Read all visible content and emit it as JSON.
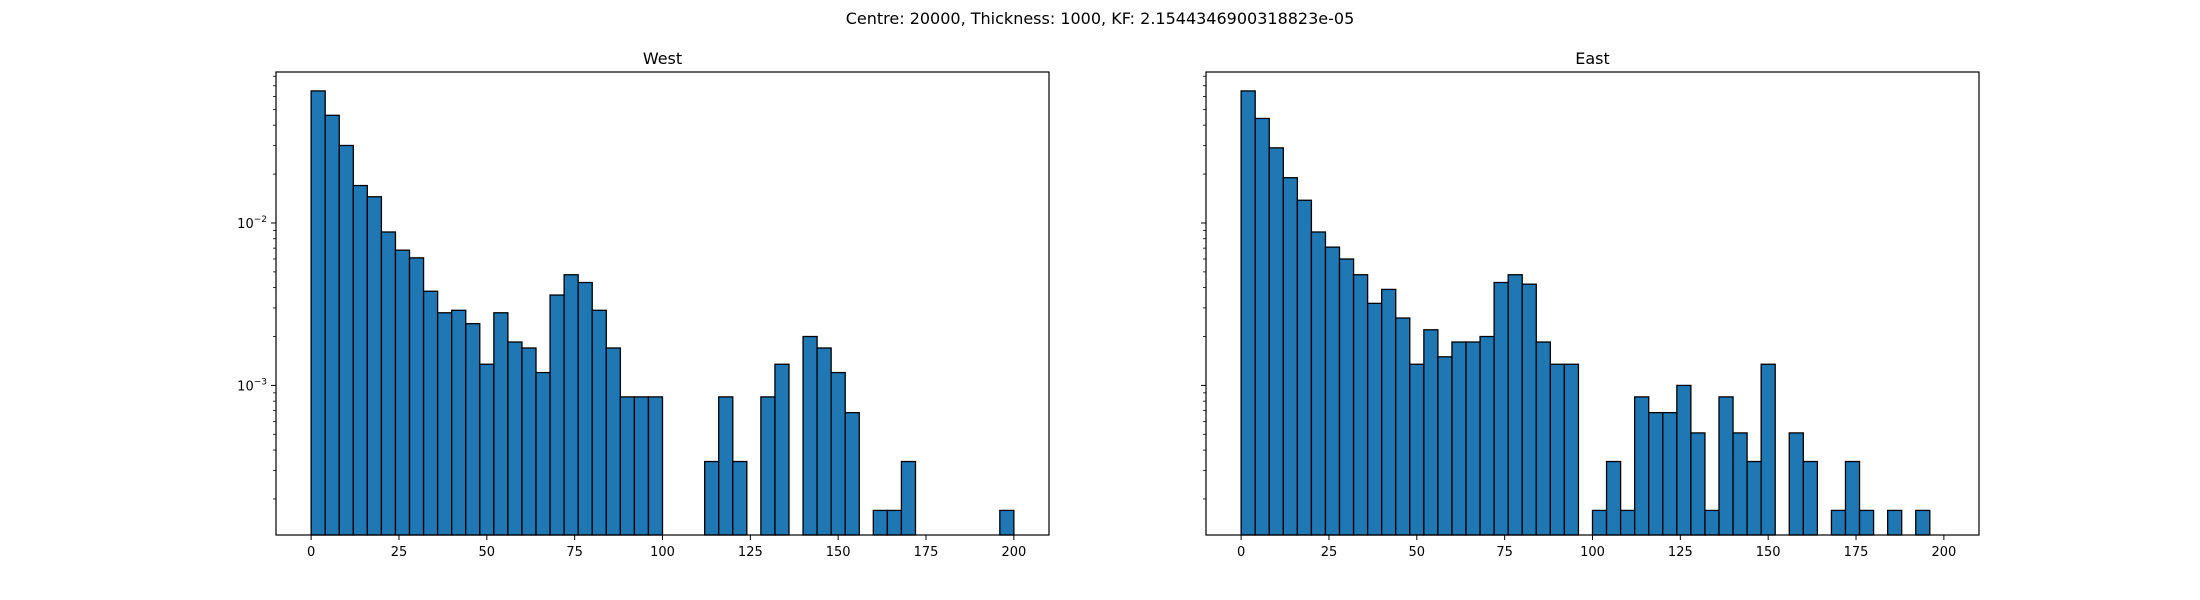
{
  "figure": {
    "suptitle": "Centre: 20000, Thickness: 1000, KF: 2.1544346900318823e-05"
  },
  "chart_data": [
    {
      "type": "bar",
      "title": "West",
      "yscale": "log",
      "xlim": [
        -10,
        210
      ],
      "ylim": [
        0.00012,
        0.085
      ],
      "bin_width": 4,
      "xticks": [
        0,
        25,
        50,
        75,
        100,
        125,
        150,
        175,
        200
      ],
      "yticks": [
        {
          "base": "10",
          "exp": "−2",
          "value": 0.01
        },
        {
          "base": "10",
          "exp": "−3",
          "value": 0.001
        }
      ],
      "bar_color": "#1f77b4",
      "x": [
        0,
        4,
        8,
        12,
        16,
        20,
        24,
        28,
        32,
        36,
        40,
        44,
        48,
        52,
        56,
        60,
        64,
        68,
        72,
        76,
        80,
        84,
        88,
        92,
        96,
        100,
        104,
        108,
        112,
        116,
        120,
        124,
        128,
        132,
        136,
        140,
        144,
        148,
        152,
        156,
        160,
        164,
        168,
        172,
        176,
        180,
        184,
        188,
        192,
        196
      ],
      "values": [
        0.065,
        0.046,
        0.03,
        0.017,
        0.0145,
        0.0088,
        0.0068,
        0.0061,
        0.0038,
        0.0028,
        0.0029,
        0.0024,
        0.00135,
        0.0028,
        0.00185,
        0.0017,
        0.0012,
        0.0036,
        0.0048,
        0.0043,
        0.0029,
        0.0017,
        0.00085,
        0.00085,
        0.00085,
        0,
        0,
        0,
        0.00034,
        0.00085,
        0.00034,
        0,
        0.00085,
        0.00135,
        0,
        0.002,
        0.0017,
        0.0012,
        0.00068,
        0,
        0.00017,
        0.00017,
        0.00034,
        0,
        0,
        0,
        0,
        0,
        0,
        0.00017
      ]
    },
    {
      "type": "bar",
      "title": "East",
      "yscale": "log",
      "xlim": [
        -10,
        210
      ],
      "ylim": [
        0.00012,
        0.085
      ],
      "bin_width": 4,
      "xticks": [
        0,
        25,
        50,
        75,
        100,
        125,
        150,
        175,
        200
      ],
      "yticks": [
        {
          "base": "10",
          "exp": "−2",
          "value": 0.01
        },
        {
          "base": "10",
          "exp": "−3",
          "value": 0.001
        }
      ],
      "bar_color": "#1f77b4",
      "x": [
        0,
        4,
        8,
        12,
        16,
        20,
        24,
        28,
        32,
        36,
        40,
        44,
        48,
        52,
        56,
        60,
        64,
        68,
        72,
        76,
        80,
        84,
        88,
        92,
        96,
        100,
        104,
        108,
        112,
        116,
        120,
        124,
        128,
        132,
        136,
        140,
        144,
        148,
        152,
        156,
        160,
        164,
        168,
        172,
        176,
        180,
        184,
        188,
        192,
        196
      ],
      "values": [
        0.065,
        0.044,
        0.029,
        0.019,
        0.0138,
        0.0088,
        0.0071,
        0.006,
        0.0048,
        0.0032,
        0.0039,
        0.0026,
        0.00135,
        0.0022,
        0.0015,
        0.00185,
        0.00185,
        0.002,
        0.0043,
        0.0048,
        0.0042,
        0.00185,
        0.00135,
        0.00135,
        0,
        0.00017,
        0.00034,
        0.00017,
        0.00085,
        0.00068,
        0.00068,
        0.001,
        0.00051,
        0.00017,
        0.00085,
        0.00051,
        0.00034,
        0.00135,
        0,
        0.00051,
        0.00034,
        0,
        0.00017,
        0.00034,
        0.00017,
        0,
        0.00017,
        0,
        0.00017,
        0
      ]
    }
  ]
}
